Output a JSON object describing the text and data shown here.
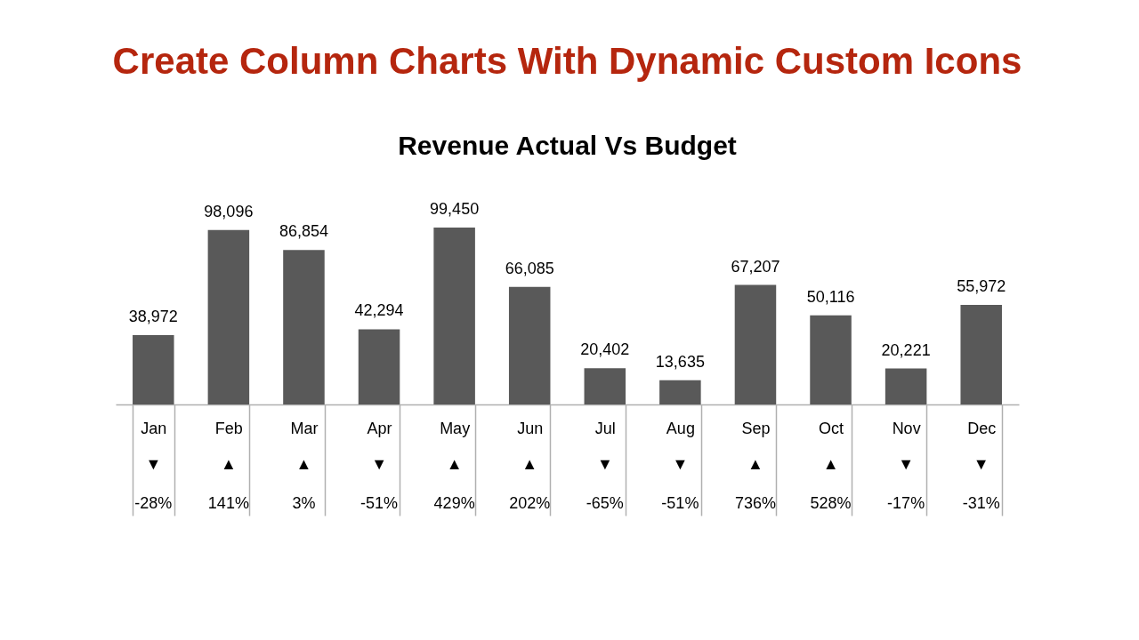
{
  "chart_data": {
    "type": "bar",
    "title": "Create  Column Charts With Dynamic Custom Icons",
    "subtitle": "Revenue Actual Vs Budget",
    "categories": [
      "Jan",
      "Feb",
      "Mar",
      "Apr",
      "May",
      "Jun",
      "Jul",
      "Aug",
      "Sep",
      "Oct",
      "Nov",
      "Dec"
    ],
    "values": [
      38972,
      98096,
      86854,
      42294,
      99450,
      66085,
      20402,
      13635,
      67207,
      50116,
      20221,
      55972
    ],
    "value_labels": [
      "38,972",
      "98,096",
      "86,854",
      "42,294",
      "99,450",
      "66,085",
      "20,402",
      "13,635",
      "67,207",
      "50,116",
      "20,221",
      "55,972"
    ],
    "color": "#595959",
    "annotations": [
      "▼",
      "-28%",
      "▲",
      "141%",
      "▲",
      "3%",
      "▼",
      "-51%",
      "▲",
      "429%",
      "▲",
      "202%",
      "▼",
      "-65%",
      "▼",
      "-51%",
      "▲",
      "736%",
      "▲",
      "528%",
      "▼",
      "-17%",
      "▼",
      "-31%"
    ]
  }
}
